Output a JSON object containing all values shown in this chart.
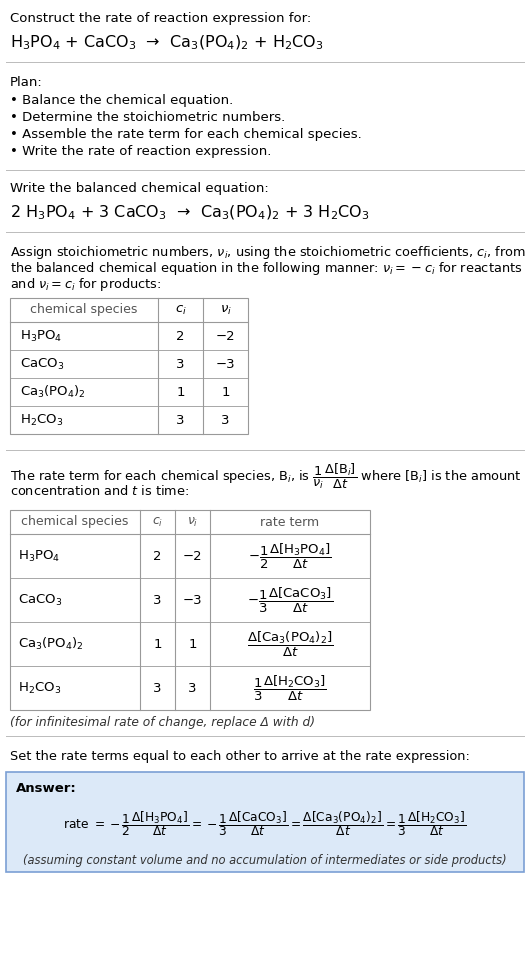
{
  "bg_color": "#ffffff",
  "title_line1": "Construct the rate of reaction expression for:",
  "reaction_unbalanced": "H$_3$PO$_4$ + CaCO$_3$  →  Ca$_3$(PO$_4$)$_2$ + H$_2$CO$_3$",
  "plan_header": "Plan:",
  "plan_items": [
    "• Balance the chemical equation.",
    "• Determine the stoichiometric numbers.",
    "• Assemble the rate term for each chemical species.",
    "• Write the rate of reaction expression."
  ],
  "balanced_header": "Write the balanced chemical equation:",
  "reaction_balanced": "2 H$_3$PO$_4$ + 3 CaCO$_3$  →  Ca$_3$(PO$_4$)$_2$ + 3 H$_2$CO$_3$",
  "stoich_intro_lines": [
    "Assign stoichiometric numbers, $\\nu_i$, using the stoichiometric coefficients, $c_i$, from",
    "the balanced chemical equation in the following manner: $\\nu_i = -c_i$ for reactants",
    "and $\\nu_i = c_i$ for products:"
  ],
  "table1_headers": [
    "chemical species",
    "$c_i$",
    "$\\nu_i$"
  ],
  "table1_rows": [
    [
      "H$_3$PO$_4$",
      "2",
      "−2"
    ],
    [
      "CaCO$_3$",
      "3",
      "−3"
    ],
    [
      "Ca$_3$(PO$_4$)$_2$",
      "1",
      "1"
    ],
    [
      "H$_2$CO$_3$",
      "3",
      "3"
    ]
  ],
  "rate_term_intro_lines": [
    "The rate term for each chemical species, B$_i$, is $\\dfrac{1}{\\nu_i}\\dfrac{\\Delta[\\mathrm{B}_i]}{\\Delta t}$ where [B$_i$] is the amount",
    "concentration and $t$ is time:"
  ],
  "table2_headers": [
    "chemical species",
    "$c_i$",
    "$\\nu_i$",
    "rate term"
  ],
  "table2_rows": [
    [
      "H$_3$PO$_4$",
      "2",
      "−2",
      "$-\\dfrac{1}{2}\\dfrac{\\Delta[\\mathrm{H_3PO_4}]}{\\Delta t}$"
    ],
    [
      "CaCO$_3$",
      "3",
      "−3",
      "$-\\dfrac{1}{3}\\dfrac{\\Delta[\\mathrm{CaCO_3}]}{\\Delta t}$"
    ],
    [
      "Ca$_3$(PO$_4$)$_2$",
      "1",
      "1",
      "$\\dfrac{\\Delta[\\mathrm{Ca_3(PO_4)_2}]}{\\Delta t}$"
    ],
    [
      "H$_2$CO$_3$",
      "3",
      "3",
      "$\\dfrac{1}{3}\\dfrac{\\Delta[\\mathrm{H_2CO_3}]}{\\Delta t}$"
    ]
  ],
  "infinitesimal_note": "(for infinitesimal rate of change, replace Δ with d)",
  "set_equal_text": "Set the rate terms equal to each other to arrive at the rate expression:",
  "answer_box_fill": "#dce9f8",
  "answer_box_edge": "#7b9fd4",
  "answer_label": "Answer:",
  "answer_note": "(assuming constant volume and no accumulation of intermediates or side products)"
}
